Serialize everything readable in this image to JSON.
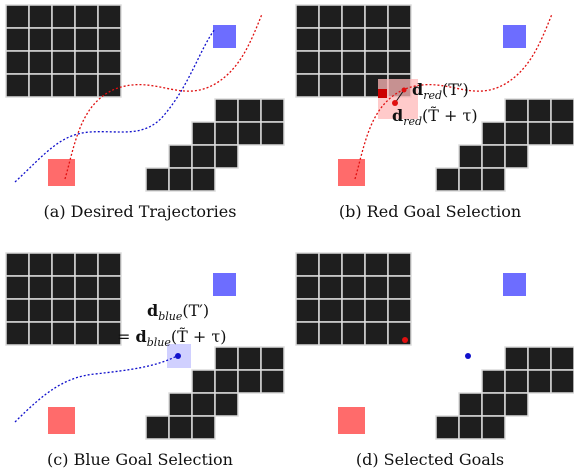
{
  "panels": [
    {
      "id": "a",
      "caption": "(a) Desired Trajectories"
    },
    {
      "id": "b",
      "caption": "(b) Red Goal Selection"
    },
    {
      "id": "c",
      "caption": "(c) Blue Goal Selection"
    },
    {
      "id": "d",
      "caption": "(d) Selected Goals"
    }
  ],
  "colors": {
    "obstacle": "#1e1e1e",
    "red": "#ff6b6b",
    "blue": "#6d6dff",
    "red_curve": "#e01010",
    "blue_curve": "#1010cc"
  },
  "labels": {
    "b_top": {
      "bold": "d",
      "sub": "red",
      "arg": "(T′)"
    },
    "b_bottom": {
      "bold": "d",
      "sub": "red",
      "arg": "(T̃ + τ)"
    },
    "c_top": {
      "bold": "d",
      "sub": "blue",
      "arg": "(T′)"
    },
    "c_bottom": {
      "prefix": "= ",
      "bold": "d",
      "sub": "blue",
      "arg": "(T̃ + τ)"
    }
  }
}
